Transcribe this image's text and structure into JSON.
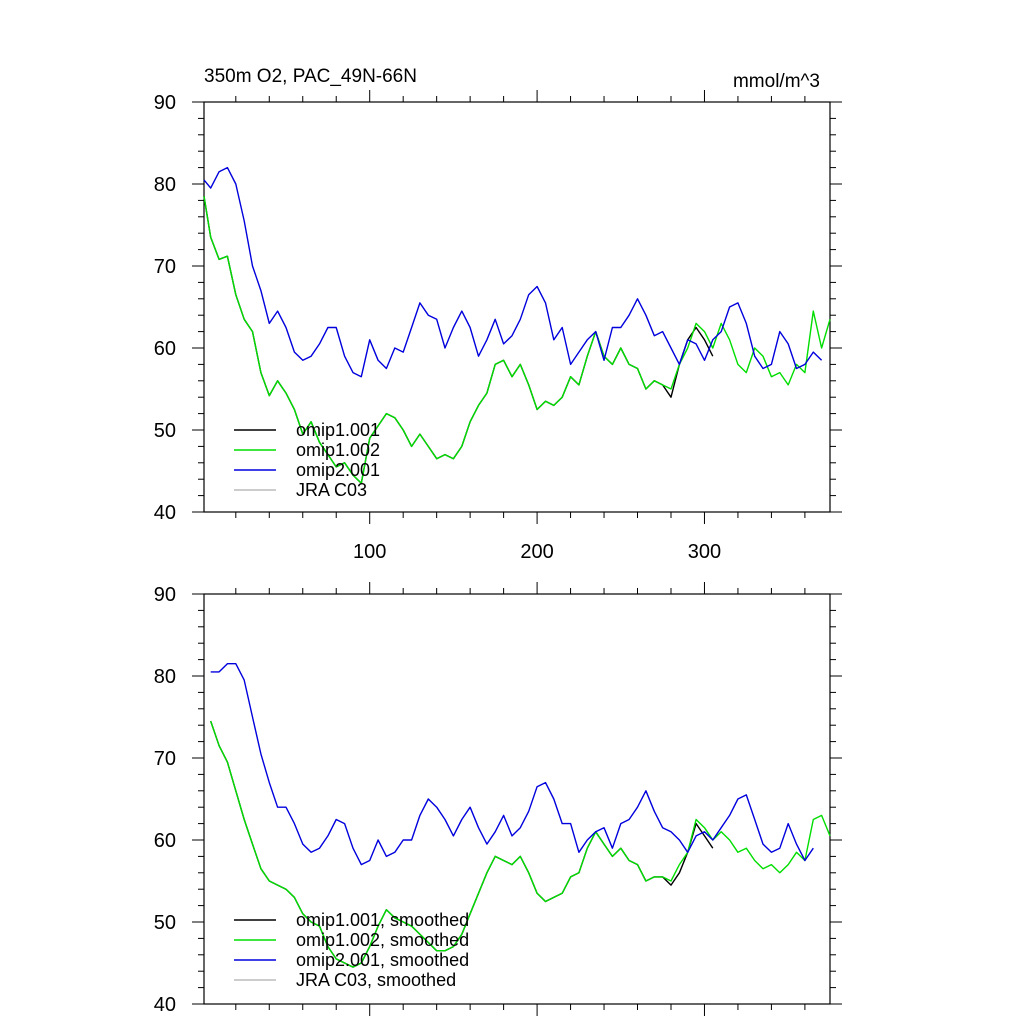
{
  "chart_data": [
    {
      "type": "line",
      "title": "350m O2, PAC_49N-66N",
      "units": "mmol/m^3",
      "xlim": [
        1,
        375
      ],
      "ylim": [
        40,
        90
      ],
      "xticks": [
        100,
        200,
        300
      ],
      "yticks": [
        40,
        50,
        60,
        70,
        80,
        90
      ],
      "legend_position": "bottom-left",
      "series": [
        {
          "name": "omip1.001",
          "color": "#000000",
          "x": [
            1,
            5,
            10,
            15,
            20,
            25,
            30,
            35,
            40,
            45,
            50,
            55,
            60,
            65,
            70,
            75,
            80,
            85,
            90,
            95,
            100,
            105,
            110,
            115,
            120,
            125,
            130,
            135,
            140,
            145,
            150,
            155,
            160,
            165,
            170,
            175,
            180,
            185,
            190,
            195,
            200,
            205,
            210,
            215,
            220,
            225,
            230,
            235,
            240,
            245,
            250,
            255,
            260,
            265,
            270,
            275,
            280,
            285,
            290,
            295,
            300,
            305
          ],
          "y": [
            78.5,
            73.5,
            70.8,
            71.2,
            66.5,
            63.5,
            62,
            57,
            54.2,
            56,
            54.5,
            52.5,
            49.5,
            51,
            48.5,
            47,
            45.5,
            46,
            44.5,
            43.5,
            49,
            50.5,
            52,
            51.5,
            50,
            48,
            49.5,
            48,
            46.5,
            47,
            46.5,
            48,
            51,
            53,
            54.5,
            58,
            58.5,
            56.5,
            58,
            55.5,
            52.5,
            53.5,
            53,
            54,
            56.5,
            55.5,
            59,
            62,
            59,
            58,
            60,
            58,
            57.5,
            55,
            56,
            55.5,
            54,
            58,
            61,
            62.5,
            61,
            59
          ]
        },
        {
          "name": "omip1.002",
          "color": "#00dd00",
          "x": [
            1,
            5,
            10,
            15,
            20,
            25,
            30,
            35,
            40,
            45,
            50,
            55,
            60,
            65,
            70,
            75,
            80,
            85,
            90,
            95,
            100,
            105,
            110,
            115,
            120,
            125,
            130,
            135,
            140,
            145,
            150,
            155,
            160,
            165,
            170,
            175,
            180,
            185,
            190,
            195,
            200,
            205,
            210,
            215,
            220,
            225,
            230,
            235,
            240,
            245,
            250,
            255,
            260,
            265,
            270,
            275,
            280,
            285,
            290,
            295,
            300,
            305,
            310,
            315,
            320,
            325,
            330,
            335,
            340,
            345,
            350,
            355,
            360,
            365,
            370,
            375
          ],
          "y": [
            78.5,
            73.5,
            70.8,
            71.2,
            66.5,
            63.5,
            62,
            57,
            54.2,
            56,
            54.5,
            52.5,
            49.5,
            51,
            48.5,
            47,
            45.5,
            46,
            44.5,
            43.5,
            49,
            50.5,
            52,
            51.5,
            50,
            48,
            49.5,
            48,
            46.5,
            47,
            46.5,
            48,
            51,
            53,
            54.5,
            58,
            58.5,
            56.5,
            58,
            55.5,
            52.5,
            53.5,
            53,
            54,
            56.5,
            55.5,
            59,
            62,
            59,
            58,
            60,
            58,
            57.5,
            55,
            56,
            55.5,
            55,
            58,
            60,
            63,
            62,
            60,
            63,
            61,
            58,
            57,
            60,
            59,
            56.5,
            57,
            55.5,
            58,
            57,
            64.5,
            60,
            63.5
          ]
        },
        {
          "name": "omip2.001",
          "color": "#0000dd",
          "x": [
            1,
            5,
            10,
            15,
            20,
            25,
            30,
            35,
            40,
            45,
            50,
            55,
            60,
            65,
            70,
            75,
            80,
            85,
            90,
            95,
            100,
            105,
            110,
            115,
            120,
            125,
            130,
            135,
            140,
            145,
            150,
            155,
            160,
            165,
            170,
            175,
            180,
            185,
            190,
            195,
            200,
            205,
            210,
            215,
            220,
            225,
            230,
            235,
            240,
            245,
            250,
            255,
            260,
            265,
            270,
            275,
            280,
            285,
            290,
            295,
            300,
            305,
            310,
            315,
            320,
            325,
            330,
            335,
            340,
            345,
            350,
            355,
            360,
            365,
            370
          ],
          "y": [
            80.5,
            79.5,
            81.5,
            82,
            80,
            75.5,
            70,
            67,
            63,
            64.5,
            62.5,
            59.5,
            58.5,
            59,
            60.5,
            62.5,
            62.5,
            59,
            57,
            56.5,
            61,
            58.5,
            57.5,
            60,
            59.5,
            62.5,
            65.5,
            64,
            63.5,
            60,
            62.5,
            64.5,
            62.5,
            59,
            61,
            63.5,
            60.5,
            61.5,
            63.5,
            66.5,
            67.5,
            65.5,
            61,
            62.5,
            58,
            59.5,
            61,
            62,
            58.5,
            62.5,
            62.5,
            64,
            66,
            64,
            61.5,
            62,
            60,
            58,
            61,
            60.5,
            58.5,
            61,
            62,
            65,
            65.5,
            63,
            59,
            57.5,
            58,
            62,
            60.5,
            57.5,
            58,
            59.5,
            58.5
          ]
        },
        {
          "name": "JRA C03",
          "color": "#bbbbbb",
          "x": [],
          "y": []
        }
      ]
    },
    {
      "type": "line",
      "xlim": [
        1,
        375
      ],
      "ylim": [
        40,
        90
      ],
      "xticks": [
        100,
        200,
        300
      ],
      "yticks": [
        40,
        50,
        60,
        70,
        80,
        90
      ],
      "legend_position": "bottom-left",
      "series": [
        {
          "name": "omip1.001, smoothed",
          "color": "#000000",
          "x": [
            5,
            10,
            15,
            20,
            25,
            30,
            35,
            40,
            45,
            50,
            55,
            60,
            65,
            70,
            75,
            80,
            85,
            90,
            95,
            100,
            105,
            110,
            115,
            120,
            125,
            130,
            135,
            140,
            145,
            150,
            155,
            160,
            165,
            170,
            175,
            180,
            185,
            190,
            195,
            200,
            205,
            210,
            215,
            220,
            225,
            230,
            235,
            240,
            245,
            250,
            255,
            260,
            265,
            270,
            275,
            280,
            285,
            290,
            295,
            300,
            305
          ],
          "y": [
            74.5,
            71.5,
            69.5,
            66,
            62.5,
            59.5,
            56.5,
            55,
            54.5,
            54,
            53,
            51,
            50,
            49.5,
            47,
            45.5,
            45,
            44.5,
            45,
            47,
            49.5,
            51.5,
            50.5,
            50,
            49.5,
            48.5,
            47.5,
            46.5,
            46.5,
            47,
            48.5,
            51,
            53.5,
            56,
            58,
            57.5,
            57,
            58,
            56,
            53.5,
            52.5,
            53,
            53.5,
            55.5,
            56,
            59,
            61,
            59.5,
            58,
            59,
            57.5,
            57,
            55,
            55.5,
            55.5,
            54.5,
            56,
            58.5,
            62,
            60.5,
            59
          ]
        },
        {
          "name": "omip1.002, smoothed",
          "color": "#00dd00",
          "x": [
            5,
            10,
            15,
            20,
            25,
            30,
            35,
            40,
            45,
            50,
            55,
            60,
            65,
            70,
            75,
            80,
            85,
            90,
            95,
            100,
            105,
            110,
            115,
            120,
            125,
            130,
            135,
            140,
            145,
            150,
            155,
            160,
            165,
            170,
            175,
            180,
            185,
            190,
            195,
            200,
            205,
            210,
            215,
            220,
            225,
            230,
            235,
            240,
            245,
            250,
            255,
            260,
            265,
            270,
            275,
            280,
            285,
            290,
            295,
            300,
            305,
            310,
            315,
            320,
            325,
            330,
            335,
            340,
            345,
            350,
            355,
            360,
            365,
            370,
            375
          ],
          "y": [
            74.5,
            71.5,
            69.5,
            66,
            62.5,
            59.5,
            56.5,
            55,
            54.5,
            54,
            53,
            51,
            50,
            49.5,
            47,
            45.5,
            45,
            44.5,
            45,
            47,
            49.5,
            51.5,
            50.5,
            50,
            49.5,
            48.5,
            47.5,
            46.5,
            46.5,
            47,
            48.5,
            51,
            53.5,
            56,
            58,
            57.5,
            57,
            58,
            56,
            53.5,
            52.5,
            53,
            53.5,
            55.5,
            56,
            59,
            61,
            59.5,
            58,
            59,
            57.5,
            57,
            55,
            55.5,
            55.5,
            55,
            57,
            58.5,
            62.5,
            61.5,
            60,
            61,
            60,
            58.5,
            59,
            57.5,
            56.5,
            57,
            56,
            57,
            58.5,
            57.5,
            62.5,
            63,
            60.5
          ]
        },
        {
          "name": "omip2.001, smoothed",
          "color": "#0000dd",
          "x": [
            5,
            10,
            15,
            20,
            25,
            30,
            35,
            40,
            45,
            50,
            55,
            60,
            65,
            70,
            75,
            80,
            85,
            90,
            95,
            100,
            105,
            110,
            115,
            120,
            125,
            130,
            135,
            140,
            145,
            150,
            155,
            160,
            165,
            170,
            175,
            180,
            185,
            190,
            195,
            200,
            205,
            210,
            215,
            220,
            225,
            230,
            235,
            240,
            245,
            250,
            255,
            260,
            265,
            270,
            275,
            280,
            285,
            290,
            295,
            300,
            305,
            310,
            315,
            320,
            325,
            330,
            335,
            340,
            345,
            350,
            355,
            360,
            365
          ],
          "y": [
            80.5,
            80.5,
            81.5,
            81.5,
            79.5,
            75,
            70.5,
            67,
            64,
            64,
            62,
            59.5,
            58.5,
            59,
            60.5,
            62.5,
            62,
            59,
            57,
            57.5,
            60,
            58,
            58.5,
            60,
            60,
            63,
            65,
            64,
            62.5,
            60.5,
            62.5,
            64,
            61.5,
            59.5,
            61,
            63,
            60.5,
            61.5,
            63.5,
            66.5,
            67,
            65,
            62,
            62,
            58.5,
            60,
            61,
            61.5,
            59,
            62,
            62.5,
            64,
            66,
            63.5,
            61.5,
            61,
            60,
            58.5,
            60.5,
            61,
            60,
            61.5,
            63,
            65,
            65.5,
            62.5,
            59.5,
            58.5,
            59,
            62,
            59.5,
            57.5,
            59
          ]
        },
        {
          "name": "JRA C03, smoothed",
          "color": "#bbbbbb",
          "x": [],
          "y": []
        }
      ]
    }
  ]
}
